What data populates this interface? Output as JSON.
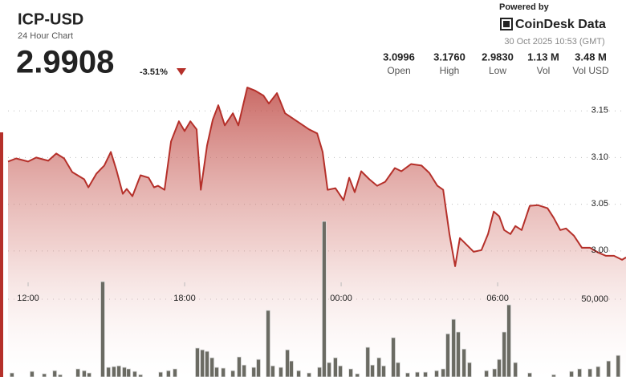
{
  "chart_data": {
    "type": "line",
    "title": "ICP-USD",
    "subtitle": "24 Hour Chart",
    "price": 2.9908,
    "change": {
      "value": -3.51,
      "label": "-3.51%"
    },
    "stats": [
      {
        "value": "3.0996",
        "label": "Open"
      },
      {
        "value": "3.1760",
        "label": "High"
      },
      {
        "value": "2.9830",
        "label": "Low"
      },
      {
        "value": "1.13 M",
        "label": "Vol"
      },
      {
        "value": "3.48 M",
        "label": "Vol USD"
      }
    ],
    "powered_by": "Powered by",
    "brand": "CoinDesk Data",
    "timestamp": "30 Oct 2025 10:53 (GMT)",
    "xlim": [
      -0.77,
      22.92
    ],
    "xticks": [
      {
        "value": 0,
        "label": "12:00"
      },
      {
        "value": 6,
        "label": "18:00"
      },
      {
        "value": 12,
        "label": "00:00"
      },
      {
        "value": 18,
        "label": "06:00"
      }
    ],
    "ylim": [
      2.865,
      3.2
    ],
    "yticks": [
      {
        "value": 3,
        "label": "3.00"
      },
      3.05,
      {
        "value": 3.1,
        "label": "3.10"
      },
      3.15
    ],
    "y2lim": [
      0,
      100000
    ],
    "y2ticks": [
      {
        "value": 50000,
        "label": "50,000"
      }
    ],
    "grid": true,
    "series": [
      {
        "color": "#b5302a",
        "x": [
          -0.77,
          -0.46,
          0,
          0.31,
          0.77,
          1.08,
          1.38,
          1.69,
          2.15,
          2.31,
          2.62,
          2.92,
          3.17,
          3.38,
          3.63,
          3.78,
          4.0,
          4.31,
          4.62,
          4.83,
          4.98,
          5.23,
          5.48,
          5.78,
          6.0,
          6.22,
          6.46,
          6.62,
          6.86,
          7.08,
          7.29,
          7.54,
          7.85,
          8.06,
          8.4,
          8.71,
          9.02,
          9.23,
          9.54,
          9.85,
          10.31,
          10.77,
          11.08,
          11.29,
          11.48,
          11.78,
          12.09,
          12.31,
          12.52,
          12.77,
          13.08,
          13.38,
          13.69,
          14.06,
          14.31,
          14.68,
          15.08,
          15.38,
          15.69,
          15.91,
          16.15,
          16.37,
          16.55,
          16.77,
          17.08,
          17.38,
          17.63,
          17.85,
          18.06,
          18.25,
          18.49,
          18.68,
          18.92,
          19.23,
          19.54,
          19.91,
          20.15,
          20.4,
          20.62,
          20.92,
          21.23,
          21.54,
          21.85,
          22.15,
          22.46,
          22.77,
          22.92
        ],
        "values": [
          3.0957,
          3.0991,
          3.0957,
          3.1,
          3.0966,
          3.1043,
          3.0991,
          3.0845,
          3.0767,
          3.0681,
          3.0828,
          3.0914,
          3.106,
          3.0871,
          3.0612,
          3.0664,
          3.0586,
          3.081,
          3.0784,
          3.0681,
          3.0698,
          3.0655,
          3.1172,
          3.1388,
          3.1284,
          3.1388,
          3.1302,
          3.0655,
          3.1129,
          3.1405,
          3.156,
          3.1345,
          3.1474,
          3.1345,
          3.175,
          3.1716,
          3.1664,
          3.1578,
          3.169,
          3.1474,
          3.1388,
          3.1302,
          3.1259,
          3.106,
          3.0655,
          3.0672,
          3.0543,
          3.0784,
          3.0629,
          3.0853,
          3.0767,
          3.0698,
          3.0741,
          3.0888,
          3.0853,
          3.0931,
          3.0914,
          3.0836,
          3.0698,
          3.0655,
          3.0181,
          2.9836,
          3.0138,
          3.0078,
          2.9991,
          3.0009,
          3.0181,
          3.0422,
          3.0371,
          3.0224,
          3.0181,
          3.0267,
          3.0224,
          3.0483,
          3.0491,
          3.0457,
          3.0353,
          3.0224,
          3.0241,
          3.0164,
          3.0034,
          3.0034,
          2.9983,
          2.9948,
          2.9948,
          2.9905,
          2.9931
        ]
      },
      {
        "type": "bar",
        "axis": "y2",
        "color": "#6b6b63",
        "x": [
          -0.62,
          0.15,
          0.62,
          1.02,
          1.23,
          1.91,
          2.15,
          2.34,
          2.86,
          3.08,
          3.29,
          3.48,
          3.69,
          3.85,
          4.09,
          4.31,
          5.08,
          5.38,
          5.63,
          6.49,
          6.68,
          6.86,
          7.05,
          7.23,
          7.48,
          7.85,
          8.09,
          8.28,
          8.65,
          8.83,
          9.2,
          9.38,
          9.69,
          9.94,
          10.09,
          10.37,
          10.77,
          11.17,
          11.35,
          11.54,
          11.78,
          11.97,
          12.37,
          12.62,
          13.02,
          13.2,
          13.45,
          13.63,
          14.0,
          14.18,
          14.55,
          14.92,
          15.23,
          15.66,
          15.91,
          16.09,
          16.31,
          16.49,
          16.71,
          16.92,
          17.57,
          17.88,
          18.06,
          18.25,
          18.43,
          18.68,
          19.23,
          20.15,
          20.83,
          21.14,
          21.54,
          21.85,
          22.25,
          22.62
        ],
        "values": [
          2600,
          3600,
          2100,
          4100,
          1500,
          5200,
          4100,
          2600,
          61300,
          6200,
          6700,
          7200,
          6200,
          5200,
          3600,
          1500,
          3100,
          4100,
          5200,
          18600,
          17500,
          16500,
          12400,
          6200,
          5700,
          4100,
          12900,
          7700,
          6200,
          11300,
          42800,
          7200,
          6200,
          17500,
          10300,
          4100,
          2600,
          6200,
          100000,
          9300,
          12400,
          7200,
          5200,
          2100,
          19100,
          7700,
          12400,
          7200,
          25300,
          9300,
          2600,
          3100,
          3100,
          4100,
          5200,
          27800,
          37100,
          28900,
          18000,
          9300,
          4100,
          5200,
          11300,
          28900,
          46400,
          9300,
          2600,
          1500,
          3600,
          5200,
          5200,
          6700,
          10300,
          13900
        ]
      }
    ]
  }
}
